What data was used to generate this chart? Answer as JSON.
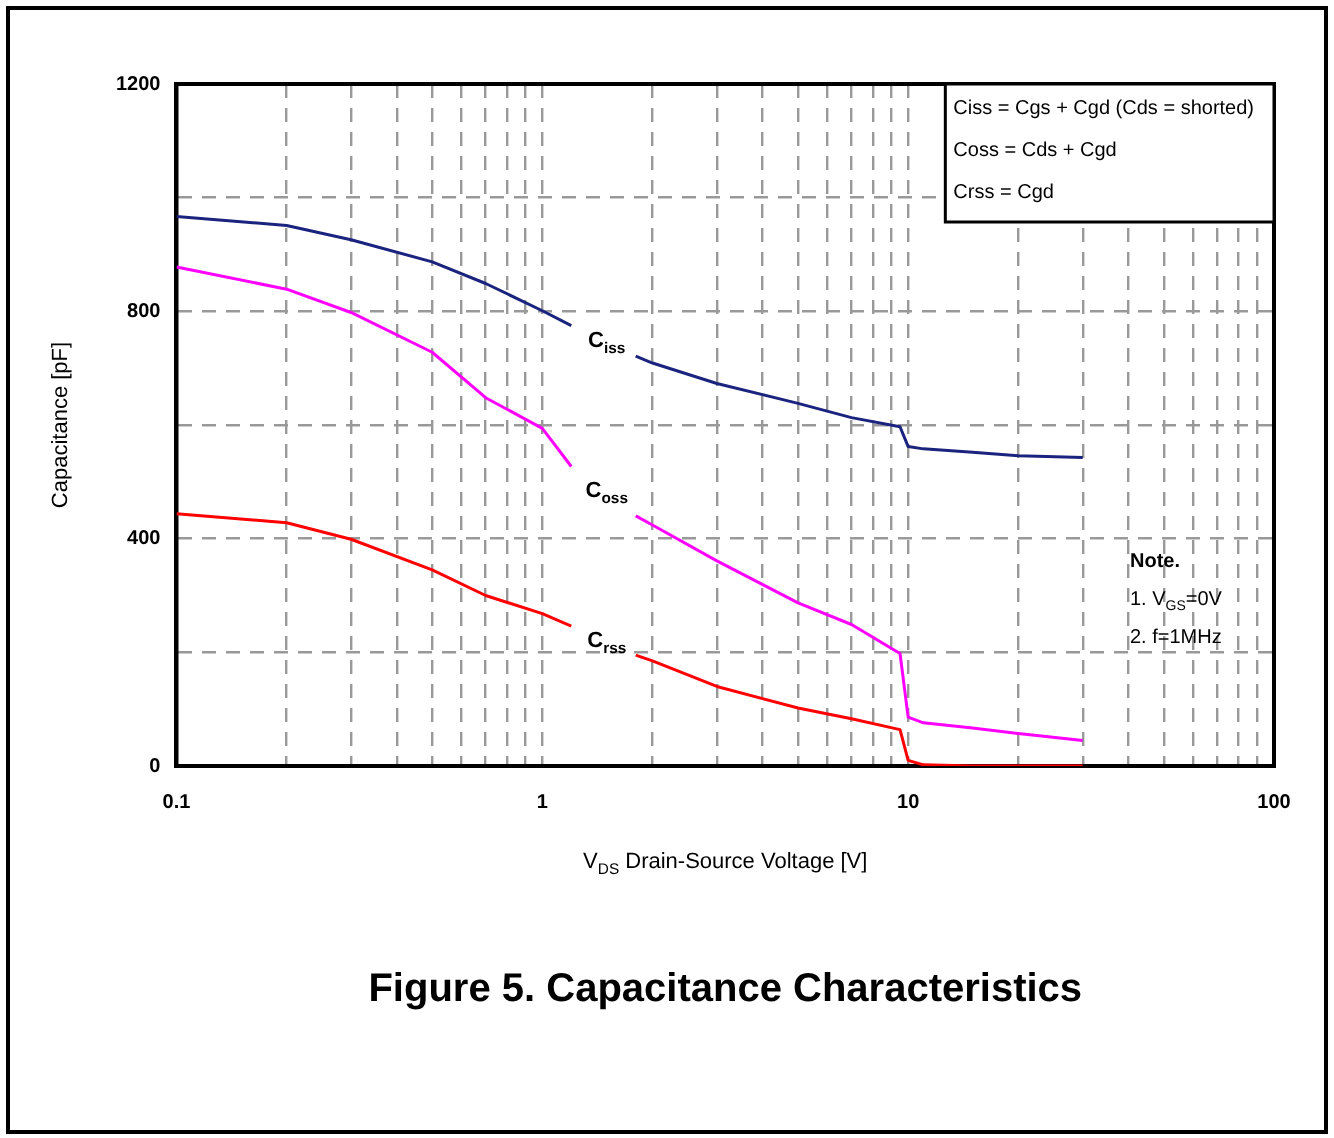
{
  "chart_data": {
    "type": "line",
    "title": "Figure 5. Capacitance Characteristics",
    "xlabel": "V$_{DS}$ Drain-Source Voltage [V]",
    "ylabel": "Capacitance [pF]",
    "log": "x",
    "xlim": [
      0.1,
      100
    ],
    "ylim": [
      0,
      1200
    ],
    "xticks": [
      0.1,
      {
        "value": 0.2,
        "label": null
      },
      {
        "value": 0.3,
        "label": null
      },
      {
        "value": 0.4,
        "label": null
      },
      {
        "value": 0.5,
        "label": null
      },
      {
        "value": 0.6,
        "label": null
      },
      {
        "value": 0.7,
        "label": null
      },
      {
        "value": 0.8,
        "label": null
      },
      {
        "value": 0.9,
        "label": null
      },
      1,
      {
        "value": 2,
        "label": null
      },
      {
        "value": 3,
        "label": null
      },
      {
        "value": 4,
        "label": null
      },
      {
        "value": 5,
        "label": null
      },
      {
        "value": 6,
        "label": null
      },
      {
        "value": 7,
        "label": null
      },
      {
        "value": 8,
        "label": null
      },
      {
        "value": 9,
        "label": null
      },
      10,
      {
        "value": 20,
        "label": null
      },
      {
        "value": 30,
        "label": null
      },
      {
        "value": 40,
        "label": null
      },
      {
        "value": 50,
        "label": null
      },
      {
        "value": 60,
        "label": null
      },
      {
        "value": 70,
        "label": null
      },
      {
        "value": 80,
        "label": null
      },
      {
        "value": 90,
        "label": null
      },
      100
    ],
    "yticks": [
      0,
      {
        "value": 200,
        "label": null
      },
      400,
      {
        "value": 600,
        "label": null
      },
      800,
      {
        "value": 1000,
        "label": null
      },
      1200
    ],
    "grid": true,
    "legend": false,
    "marker": "none",
    "line_style": "solid",
    "x": [
      0.1,
      0.2,
      0.3,
      0.5,
      0.7,
      1,
      1.2,
      1.5,
      1.8,
      2,
      3,
      5,
      7,
      9.5,
      10,
      11,
      15,
      20,
      30
    ],
    "series": [
      {
        "name": "C$_{iss}$",
        "color": "#1a237e",
        "values": [
          967,
          951,
          926,
          887,
          849,
          801,
          775,
          null,
          721,
          709,
          673,
          638,
          613,
          597,
          562,
          558,
          552,
          546,
          543
        ]
      },
      {
        "name": "C$_{oss}$",
        "color": "#ff00ff",
        "values": [
          878,
          839,
          798,
          728,
          648,
          594,
          527,
          null,
          440,
          424,
          361,
          287,
          249,
          198,
          86,
          76,
          67,
          57,
          45
        ]
      },
      {
        "name": "C$_{rss}$",
        "color": "#ff0000",
        "values": [
          444,
          428,
          399,
          345,
          300,
          268,
          246,
          null,
          195,
          185,
          140,
          102,
          83,
          64,
          10,
          2,
          0,
          0,
          0
        ]
      }
    ],
    "annotations": [
      "Ciss = Cgs + Cgd (Cds = shorted)",
      "Coss = Cds + Cgd",
      "Crss = Cgd",
      "Note.",
      "1. V$_{GS}$=0V",
      "2. f=1MHz"
    ]
  }
}
